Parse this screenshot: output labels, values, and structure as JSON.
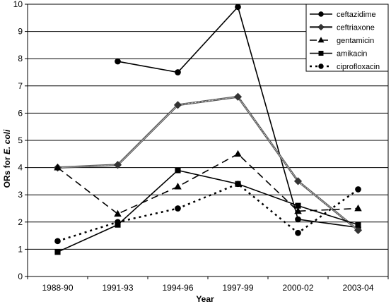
{
  "chart_data": {
    "type": "line",
    "categories": [
      "1988-90",
      "1991-93",
      "1994-96",
      "1997-99",
      "2000-02",
      "2003-04"
    ],
    "ylabel_prefix": "ORs for ",
    "ylabel_italic": "E. coli",
    "xlabel": "Year",
    "ylim": [
      0,
      10
    ],
    "yticks": [
      "0",
      "1",
      "2",
      "3",
      "4",
      "5",
      "6",
      "7",
      "8",
      "9",
      "10"
    ],
    "grid": true,
    "legend_position": "top-right",
    "series": [
      {
        "name": "ceftazidime",
        "marker": "circle",
        "dash": "solid",
        "color": "#000000",
        "values": [
          null,
          7.9,
          7.5,
          9.9,
          2.1,
          1.8
        ]
      },
      {
        "name": "ceftriaxone",
        "marker": "diamond",
        "dash": "dotted-double",
        "color": "#333333",
        "values": [
          4.0,
          4.1,
          6.3,
          6.6,
          3.5,
          1.7
        ]
      },
      {
        "name": "gentamicin",
        "marker": "triangle",
        "dash": "dashed",
        "color": "#000000",
        "values": [
          4.0,
          2.3,
          3.3,
          4.5,
          2.4,
          2.5
        ]
      },
      {
        "name": "amikacin",
        "marker": "square",
        "dash": "solid",
        "color": "#000000",
        "values": [
          0.9,
          1.9,
          3.9,
          3.4,
          2.6,
          1.9
        ]
      },
      {
        "name": "ciprofloxacin",
        "marker": "circle",
        "dash": "dotted",
        "color": "#000000",
        "values": [
          1.3,
          2.0,
          2.5,
          3.4,
          1.6,
          3.2
        ]
      }
    ]
  }
}
